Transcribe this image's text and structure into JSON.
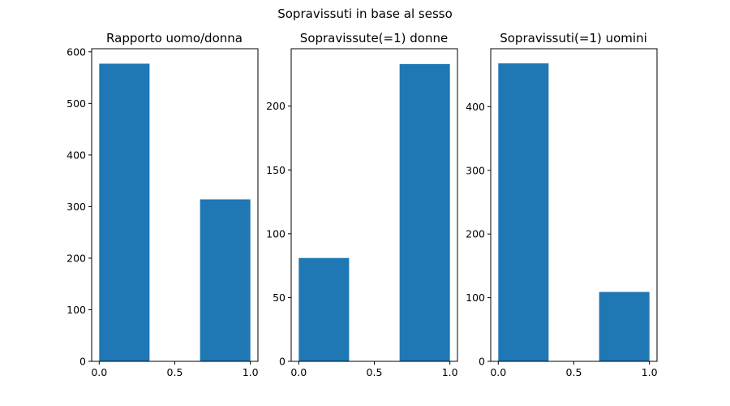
{
  "figure": {
    "suptitle": "Sopravissuti in base al sesso"
  },
  "colors": {
    "bar": "#1f77b4",
    "axes": "#000000",
    "background": "#ffffff"
  },
  "chart_data": [
    {
      "type": "bar",
      "title": "Rapporto uomo/donna",
      "xlabel": "",
      "ylabel": "",
      "bins": [
        {
          "start": 0.0,
          "end": 0.333,
          "value": 577
        },
        {
          "start": 0.667,
          "end": 1.0,
          "value": 314
        }
      ],
      "xlim": [
        -0.05,
        1.05
      ],
      "ylim": [
        0,
        606
      ],
      "xticks": [
        0.0,
        0.5,
        1.0
      ],
      "xtick_labels": [
        "0.0",
        "0.5",
        "1.0"
      ],
      "yticks": [
        0,
        100,
        200,
        300,
        400,
        500,
        600
      ],
      "ytick_labels": [
        "0",
        "100",
        "200",
        "300",
        "400",
        "500",
        "600"
      ],
      "grid": false,
      "legend": "none"
    },
    {
      "type": "bar",
      "title": "Sopravissute(=1) donne",
      "xlabel": "",
      "ylabel": "",
      "bins": [
        {
          "start": 0.0,
          "end": 0.333,
          "value": 81
        },
        {
          "start": 0.667,
          "end": 1.0,
          "value": 233
        }
      ],
      "xlim": [
        -0.05,
        1.05
      ],
      "ylim": [
        0,
        245
      ],
      "xticks": [
        0.0,
        0.5,
        1.0
      ],
      "xtick_labels": [
        "0.0",
        "0.5",
        "1.0"
      ],
      "yticks": [
        0,
        50,
        100,
        150,
        200
      ],
      "ytick_labels": [
        "0",
        "50",
        "100",
        "150",
        "200"
      ],
      "grid": false,
      "legend": "none"
    },
    {
      "type": "bar",
      "title": "Sopravissuti(=1) uomini",
      "xlabel": "",
      "ylabel": "",
      "bins": [
        {
          "start": 0.0,
          "end": 0.333,
          "value": 468
        },
        {
          "start": 0.667,
          "end": 1.0,
          "value": 109
        }
      ],
      "xlim": [
        -0.05,
        1.05
      ],
      "ylim": [
        0,
        491
      ],
      "xticks": [
        0.0,
        0.5,
        1.0
      ],
      "xtick_labels": [
        "0.0",
        "0.5",
        "1.0"
      ],
      "yticks": [
        0,
        100,
        200,
        300,
        400
      ],
      "ytick_labels": [
        "0",
        "100",
        "200",
        "300",
        "400"
      ],
      "grid": false,
      "legend": "none"
    }
  ]
}
